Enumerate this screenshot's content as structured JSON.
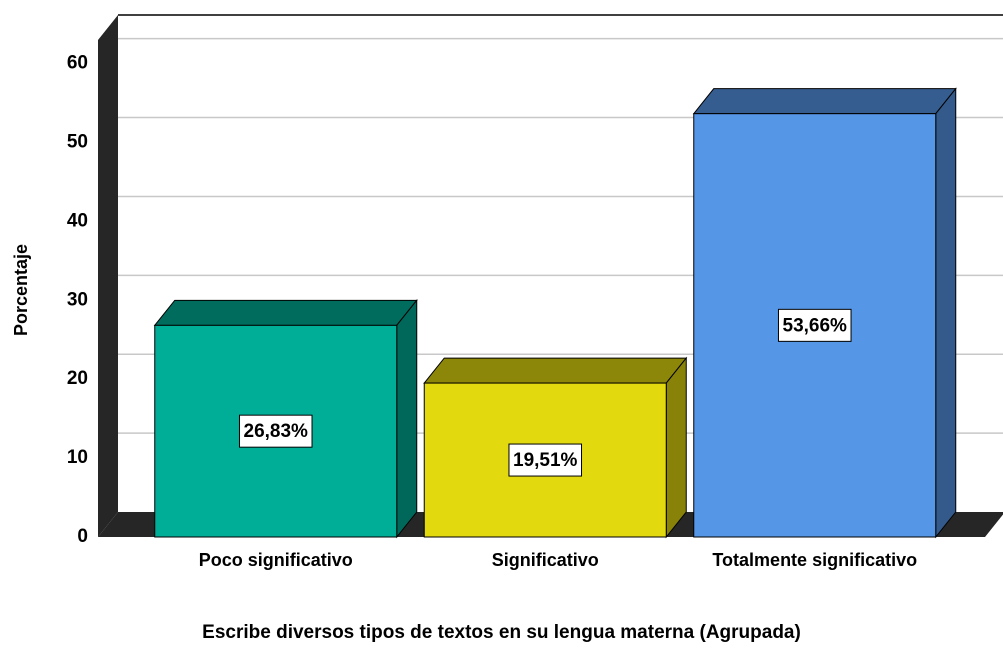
{
  "chart_data": {
    "type": "bar3d",
    "x_label": "Escribe diversos tipos de textos en su lengua materna (Agrupada)",
    "y_label": "Porcentaje",
    "categories": [
      "Poco significativo",
      "Significativo",
      "Totalmente significativo"
    ],
    "values": [
      26.83,
      19.51,
      53.66
    ],
    "value_labels": [
      "26,83%",
      "19,51%",
      "53,66%"
    ],
    "colors": [
      "#00ae98",
      "#e2d90e",
      "#5596e6"
    ],
    "ylim": [
      0,
      63
    ],
    "yticks": [
      0,
      10,
      20,
      30,
      40,
      50,
      60
    ],
    "grid": true
  }
}
